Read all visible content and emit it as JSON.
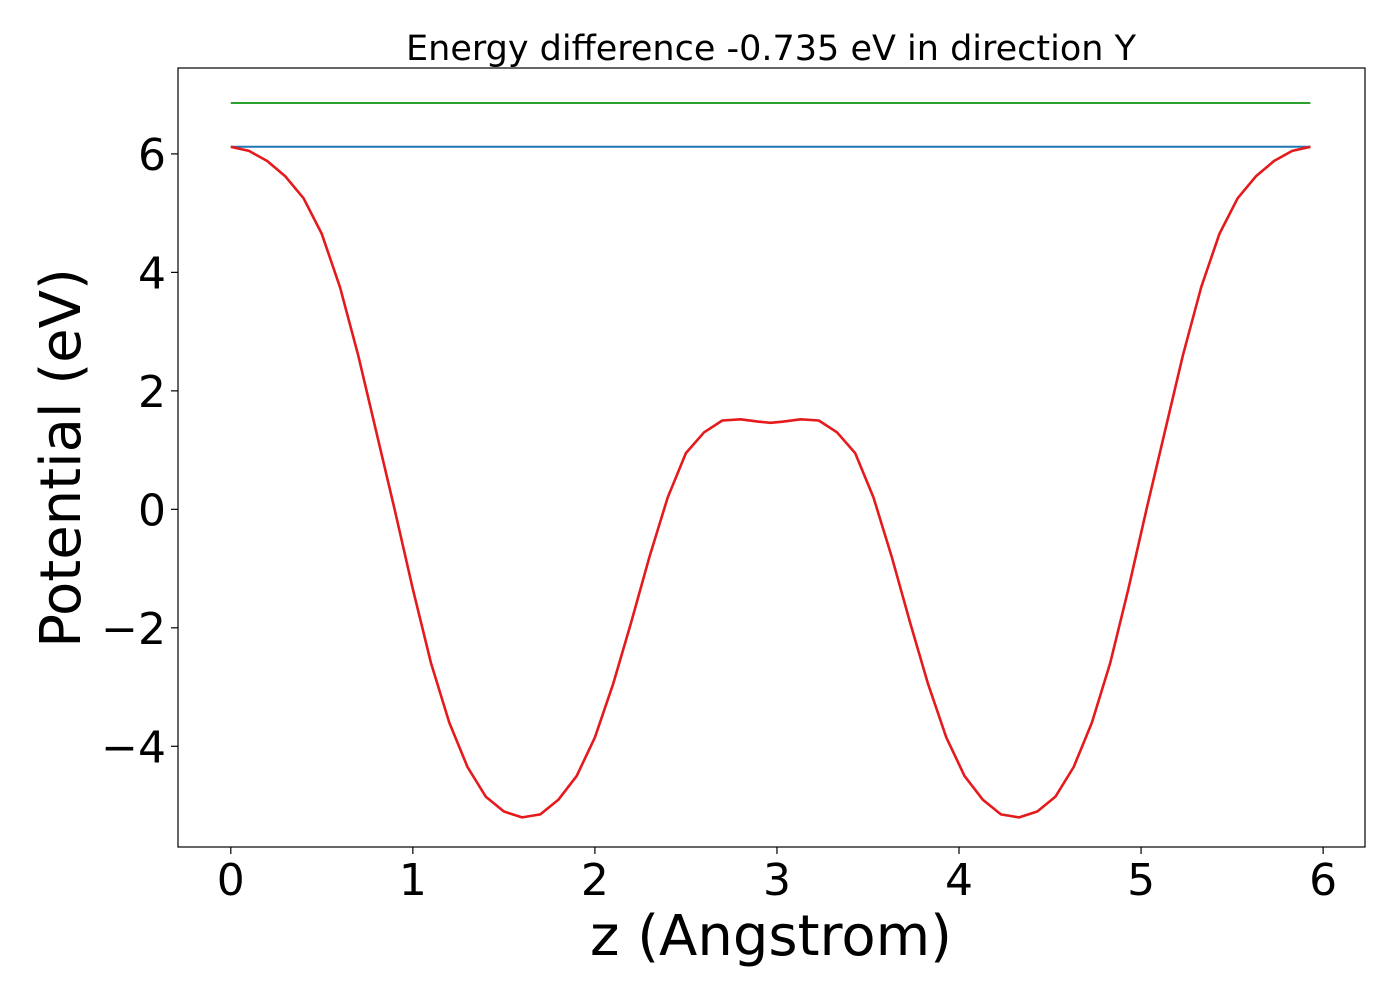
{
  "chart_data": {
    "type": "line",
    "title": "Energy difference -0.735 eV in direction Y",
    "xlabel": "z (Angstrom)",
    "ylabel": "Potential (eV)",
    "xlim": [
      -0.29,
      6.23
    ],
    "ylim": [
      -5.7,
      7.45
    ],
    "xticks": [
      0,
      1,
      2,
      3,
      4,
      5,
      6
    ],
    "xtick_labels": [
      "0",
      "1",
      "2",
      "3",
      "4",
      "5",
      "6"
    ],
    "yticks": [
      -4,
      -2,
      0,
      2,
      4,
      6
    ],
    "ytick_labels": [
      "−4",
      "−2",
      "0",
      "2",
      "4",
      "6"
    ],
    "grid": false,
    "series": [
      {
        "color": "#2ca02c",
        "x": [
          0,
          5.93
        ],
        "y": [
          6.86,
          6.86
        ]
      },
      {
        "color": "#1f77b4",
        "x": [
          0,
          5.93
        ],
        "y": [
          6.12,
          6.12
        ]
      },
      {
        "color": "#e41a1c",
        "x": [
          0,
          0.1,
          0.2,
          0.3,
          0.4,
          0.5,
          0.6,
          0.7,
          0.8,
          0.9,
          1.0,
          1.1,
          1.2,
          1.3,
          1.4,
          1.5,
          1.6,
          1.7,
          1.8,
          1.9,
          2.0,
          2.1,
          2.2,
          2.3,
          2.4,
          2.5,
          2.6,
          2.7,
          2.8,
          2.9,
          2.965,
          3.03,
          3.13,
          3.23,
          3.33,
          3.43,
          3.53,
          3.63,
          3.73,
          3.83,
          3.93,
          4.03,
          4.13,
          4.23,
          4.33,
          4.43,
          4.53,
          4.63,
          4.73,
          4.83,
          4.93,
          5.03,
          5.13,
          5.23,
          5.33,
          5.43,
          5.53,
          5.63,
          5.73,
          5.83,
          5.93
        ],
        "y": [
          6.12,
          6.05,
          5.88,
          5.62,
          5.25,
          4.65,
          3.75,
          2.6,
          1.3,
          0.0,
          -1.35,
          -2.6,
          -3.6,
          -4.35,
          -4.85,
          -5.1,
          -5.2,
          -5.15,
          -4.9,
          -4.5,
          -3.85,
          -2.95,
          -1.9,
          -0.8,
          0.2,
          0.95,
          1.3,
          1.5,
          1.52,
          1.48,
          1.46,
          1.48,
          1.52,
          1.5,
          1.3,
          0.95,
          0.2,
          -0.8,
          -1.9,
          -2.95,
          -3.85,
          -4.5,
          -4.9,
          -5.15,
          -5.2,
          -5.1,
          -4.85,
          -4.35,
          -3.6,
          -2.6,
          -1.35,
          0.0,
          1.3,
          2.6,
          3.75,
          4.65,
          5.25,
          5.62,
          5.88,
          6.05,
          6.12
        ]
      }
    ]
  }
}
